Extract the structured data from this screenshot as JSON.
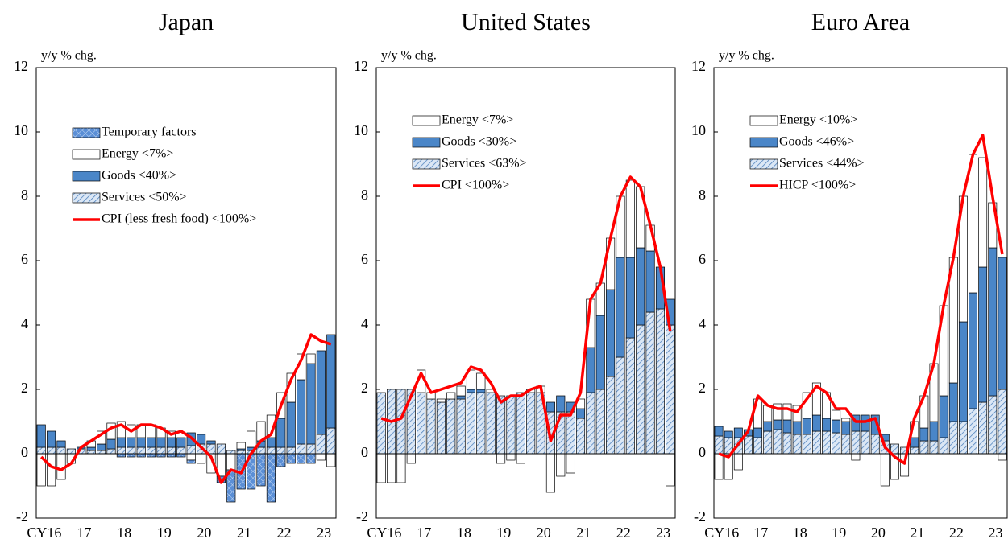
{
  "chart_data": [
    {
      "type": "bar",
      "stacked": true,
      "title": "Japan",
      "y_label": "y/y % chg.",
      "legend": "upper left",
      "categories": [
        "CY16",
        null,
        null,
        null,
        "17",
        null,
        null,
        null,
        "18",
        null,
        null,
        null,
        "19",
        null,
        null,
        null,
        "20",
        null,
        null,
        null,
        "21",
        null,
        null,
        null,
        "22",
        null,
        null,
        null,
        "23",
        null
      ],
      "ylim": [
        -2,
        12
      ],
      "yticks": [
        -2,
        0,
        2,
        4,
        6,
        8,
        10,
        12
      ],
      "series": [
        {
          "name": "Temporary factors",
          "color": "#5b8fd6",
          "pattern": "cross",
          "values": [
            0,
            0,
            0,
            0,
            0,
            0,
            0,
            0,
            -0.1,
            -0.1,
            -0.1,
            -0.1,
            -0.1,
            -0.1,
            -0.1,
            -0.1,
            0,
            0,
            -0.2,
            -1.0,
            -1.1,
            -1.1,
            -1.0,
            -1.5,
            -0.4,
            -0.3,
            -0.3,
            -0.3,
            0,
            0
          ]
        },
        {
          "name": "Energy <7%>",
          "color": "#ffffff",
          "values": [
            -1.0,
            -1.0,
            -0.8,
            -0.3,
            0.0,
            0.2,
            0.4,
            0.5,
            0.5,
            0.4,
            0.4,
            0.4,
            0.3,
            0.2,
            0.0,
            -0.2,
            -0.3,
            -0.6,
            -0.7,
            -0.5,
            0.2,
            0.5,
            0.6,
            0.7,
            0.8,
            0.9,
            0.8,
            0.3,
            -0.2,
            -0.4
          ]
        },
        {
          "name": "Goods <40%>",
          "color": "#4a86c8",
          "values": [
            0.7,
            0.5,
            0.2,
            0.0,
            0.05,
            0.1,
            0.2,
            0.3,
            0.3,
            0.3,
            0.3,
            0.3,
            0.3,
            0.3,
            0.3,
            0.4,
            0.3,
            0.1,
            0.0,
            0.0,
            0.05,
            0.1,
            0.2,
            0.3,
            0.9,
            1.4,
            2.0,
            2.5,
            2.6,
            2.9
          ]
        },
        {
          "name": "Services <50%>",
          "color": "#4a7ebb",
          "pattern": "diagonal",
          "values": [
            0.2,
            0.2,
            0.2,
            0.15,
            0.15,
            0.1,
            0.1,
            0.15,
            0.2,
            0.2,
            0.2,
            0.2,
            0.2,
            0.2,
            0.2,
            0.25,
            0.3,
            0.3,
            0.3,
            0.1,
            0.1,
            0.1,
            0.2,
            0.2,
            0.2,
            0.2,
            0.3,
            0.3,
            0.6,
            0.8
          ]
        },
        {
          "name": "CPI (less fresh food) <100%>",
          "color": "#ff0000",
          "type": "line",
          "values": [
            -0.1,
            -0.4,
            -0.5,
            -0.3,
            0.2,
            0.4,
            0.6,
            0.8,
            0.9,
            0.7,
            0.9,
            0.9,
            0.8,
            0.6,
            0.7,
            0.5,
            0.2,
            -0.1,
            -0.9,
            -0.5,
            -0.6,
            0.0,
            0.4,
            0.6,
            1.5,
            2.3,
            2.9,
            3.7,
            3.5,
            3.4
          ]
        }
      ]
    },
    {
      "type": "bar",
      "stacked": true,
      "title": "United States",
      "y_label": "y/y % chg.",
      "legend": "upper left",
      "categories": [
        "CY16",
        null,
        null,
        null,
        "17",
        null,
        null,
        null,
        "18",
        null,
        null,
        null,
        "19",
        null,
        null,
        null,
        "20",
        null,
        null,
        null,
        "21",
        null,
        null,
        null,
        "22",
        null,
        null,
        null,
        "23",
        null
      ],
      "ylim": [
        -2,
        12
      ],
      "yticks": [
        -2,
        0,
        2,
        4,
        6,
        8,
        10,
        12
      ],
      "series": [
        {
          "name": "Energy <7%>",
          "color": "#ffffff",
          "values": [
            -0.9,
            -0.9,
            -0.9,
            -0.3,
            0.7,
            0.2,
            0.1,
            0.2,
            0.3,
            0.6,
            0.5,
            0.1,
            -0.3,
            -0.2,
            -0.3,
            0.1,
            0.2,
            -1.2,
            -0.7,
            -0.6,
            0.3,
            1.5,
            1.0,
            1.6,
            1.9,
            2.4,
            1.9,
            0.8,
            0.0,
            -1.0
          ]
        },
        {
          "name": "Goods <30%>",
          "color": "#4a86c8",
          "values": [
            0,
            0,
            0,
            0,
            0,
            0,
            0,
            0,
            0.1,
            0.1,
            0.1,
            0,
            0,
            0,
            0,
            0,
            0,
            0.3,
            0.5,
            0.3,
            0.3,
            1.4,
            2.3,
            2.7,
            3.1,
            2.5,
            2.4,
            1.9,
            1.3,
            0.8
          ]
        },
        {
          "name": "Services <63%>",
          "color": "#4a7ebb",
          "pattern": "diagonal",
          "values": [
            1.9,
            2.0,
            2.0,
            2.0,
            1.9,
            1.7,
            1.6,
            1.7,
            1.7,
            1.9,
            1.9,
            1.9,
            1.8,
            1.8,
            1.9,
            1.9,
            1.9,
            1.3,
            1.3,
            1.3,
            1.1,
            1.9,
            2.0,
            2.4,
            3.0,
            3.6,
            4.0,
            4.4,
            4.5,
            4.0
          ]
        },
        {
          "name": "CPI <100%>",
          "color": "#ff0000",
          "type": "line",
          "values": [
            1.1,
            1.0,
            1.1,
            1.8,
            2.5,
            1.9,
            2.0,
            2.1,
            2.2,
            2.7,
            2.6,
            2.2,
            1.6,
            1.8,
            1.8,
            2.0,
            2.1,
            0.4,
            1.2,
            1.2,
            1.9,
            4.8,
            5.3,
            6.7,
            8.0,
            8.6,
            8.3,
            7.1,
            5.8,
            3.8
          ]
        }
      ]
    },
    {
      "type": "bar",
      "stacked": true,
      "title": "Euro Area",
      "y_label": "y/y % chg.",
      "legend": "upper left",
      "categories": [
        "CY16",
        null,
        null,
        null,
        "17",
        null,
        null,
        null,
        "18",
        null,
        null,
        null,
        "19",
        null,
        null,
        null,
        "20",
        null,
        null,
        null,
        "21",
        null,
        null,
        null,
        "22",
        null,
        null,
        null,
        "23",
        null
      ],
      "ylim": [
        -2,
        12
      ],
      "yticks": [
        -2,
        0,
        2,
        4,
        6,
        8,
        10,
        12
      ],
      "series": [
        {
          "name": "Energy <10%>",
          "color": "#ffffff",
          "values": [
            -0.8,
            -0.8,
            -0.5,
            0.0,
            0.9,
            0.5,
            0.5,
            0.5,
            0.5,
            0.8,
            1.0,
            0.8,
            0.3,
            0.1,
            -0.2,
            0.0,
            0.0,
            -1.0,
            -0.8,
            -0.7,
            0.5,
            1.0,
            1.8,
            2.8,
            3.9,
            3.9,
            4.3,
            3.4,
            1.4,
            -0.2
          ]
        },
        {
          "name": "Goods <46%>",
          "color": "#4a86c8",
          "values": [
            0.3,
            0.2,
            0.3,
            0.2,
            0.3,
            0.3,
            0.3,
            0.4,
            0.4,
            0.5,
            0.5,
            0.4,
            0.4,
            0.4,
            0.5,
            0.5,
            0.6,
            0.2,
            0.0,
            0.0,
            0.3,
            0.4,
            0.6,
            1.3,
            1.2,
            3.1,
            3.6,
            4.2,
            4.6,
            4.1
          ]
        },
        {
          "name": "Services <44%>",
          "color": "#4a7ebb",
          "pattern": "diagonal",
          "values": [
            0.55,
            0.5,
            0.5,
            0.55,
            0.5,
            0.7,
            0.75,
            0.65,
            0.6,
            0.6,
            0.7,
            0.7,
            0.65,
            0.6,
            0.7,
            0.7,
            0.6,
            0.4,
            0.3,
            0.2,
            0.2,
            0.4,
            0.4,
            0.5,
            1.0,
            1.0,
            1.4,
            1.6,
            1.8,
            2.0
          ]
        },
        {
          "name": "HICP <100%>",
          "color": "#ff0000",
          "type": "line",
          "values": [
            0.0,
            -0.1,
            0.3,
            0.7,
            1.8,
            1.5,
            1.4,
            1.4,
            1.3,
            1.7,
            2.1,
            1.9,
            1.4,
            1.4,
            1.0,
            1.0,
            1.1,
            0.2,
            -0.1,
            -0.3,
            1.1,
            1.8,
            2.8,
            4.6,
            6.1,
            8.0,
            9.3,
            9.9,
            8.0,
            6.2
          ]
        }
      ]
    }
  ]
}
